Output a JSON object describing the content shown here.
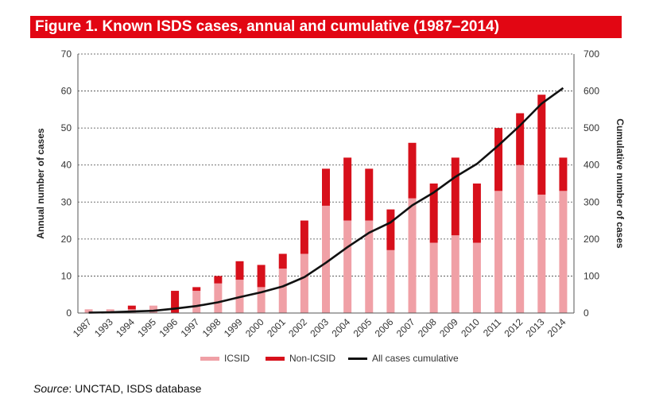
{
  "chart_data": {
    "type": "bar",
    "title": "Figure 1. Known ISDS cases, annual and cumulative (1987–2014)",
    "categories": [
      "1987",
      "1993",
      "1994",
      "1995",
      "1996",
      "1997",
      "1998",
      "1999",
      "2000",
      "2001",
      "2002",
      "2003",
      "2004",
      "2005",
      "2006",
      "2007",
      "2008",
      "2009",
      "2010",
      "2011",
      "2012",
      "2013",
      "2014"
    ],
    "series": [
      {
        "name": "ICSID",
        "type": "bar",
        "stacked": true,
        "axis": "left",
        "color": "#f0a0a6",
        "values": [
          1,
          1,
          1,
          2,
          0,
          6,
          8,
          9,
          7,
          12,
          16,
          29,
          25,
          25,
          17,
          31,
          19,
          21,
          19,
          33,
          40,
          32,
          33
        ]
      },
      {
        "name": "Non-ICSID",
        "type": "bar",
        "stacked": true,
        "axis": "left",
        "color": "#d7101b",
        "values": [
          0,
          0,
          1,
          0,
          6,
          1,
          2,
          5,
          6,
          4,
          9,
          10,
          17,
          14,
          11,
          15,
          16,
          21,
          16,
          17,
          14,
          27,
          9
        ]
      },
      {
        "name": "All cases cumulative",
        "type": "line",
        "axis": "right",
        "color": "#111111",
        "values": [
          1,
          2,
          4,
          6,
          12,
          19,
          29,
          43,
          56,
          72,
          97,
          136,
          178,
          217,
          245,
          291,
          326,
          368,
          403,
          453,
          507,
          566,
          608
        ]
      }
    ],
    "ylabel": "Annual number of cases",
    "y2label": "Cumulative number of cases",
    "ylim": [
      0,
      70
    ],
    "y2lim": [
      0,
      700
    ],
    "yticks": [
      "0",
      "10",
      "20",
      "30",
      "40",
      "50",
      "60",
      "70"
    ],
    "y2ticks": [
      "0",
      "100",
      "200",
      "300",
      "400",
      "500",
      "600",
      "700"
    ],
    "grid": true,
    "legend_position": "bottom-center"
  },
  "source": {
    "label": "Source",
    "text": ": UNCTAD, ISDS database"
  }
}
